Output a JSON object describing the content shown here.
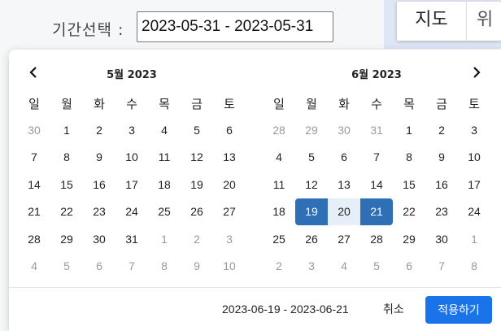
{
  "header": {
    "period_label": "기간선택 :",
    "date_input_value": "2023-05-31 - 2023-05-31",
    "tabs": [
      {
        "label": "지도"
      },
      {
        "label": "위"
      }
    ]
  },
  "calendar": {
    "weekdays": [
      "일",
      "월",
      "화",
      "수",
      "목",
      "금",
      "토"
    ],
    "months": [
      {
        "title": "5월 2023",
        "weeks": [
          [
            {
              "d": "30",
              "out": true
            },
            {
              "d": "1"
            },
            {
              "d": "2"
            },
            {
              "d": "3"
            },
            {
              "d": "4"
            },
            {
              "d": "5"
            },
            {
              "d": "6"
            }
          ],
          [
            {
              "d": "7"
            },
            {
              "d": "8"
            },
            {
              "d": "9"
            },
            {
              "d": "10"
            },
            {
              "d": "11"
            },
            {
              "d": "12"
            },
            {
              "d": "13"
            }
          ],
          [
            {
              "d": "14"
            },
            {
              "d": "15"
            },
            {
              "d": "16"
            },
            {
              "d": "17"
            },
            {
              "d": "18"
            },
            {
              "d": "19"
            },
            {
              "d": "20"
            }
          ],
          [
            {
              "d": "21"
            },
            {
              "d": "22"
            },
            {
              "d": "23"
            },
            {
              "d": "24"
            },
            {
              "d": "25"
            },
            {
              "d": "26"
            },
            {
              "d": "27"
            }
          ],
          [
            {
              "d": "28"
            },
            {
              "d": "29"
            },
            {
              "d": "30"
            },
            {
              "d": "31"
            },
            {
              "d": "1",
              "out": true
            },
            {
              "d": "2",
              "out": true
            },
            {
              "d": "3",
              "out": true
            }
          ],
          [
            {
              "d": "4",
              "out": true
            },
            {
              "d": "5",
              "out": true
            },
            {
              "d": "6",
              "out": true
            },
            {
              "d": "7",
              "out": true
            },
            {
              "d": "8",
              "out": true
            },
            {
              "d": "9",
              "out": true
            },
            {
              "d": "10",
              "out": true
            }
          ]
        ]
      },
      {
        "title": "6월 2023",
        "weeks": [
          [
            {
              "d": "28",
              "out": true
            },
            {
              "d": "29",
              "out": true
            },
            {
              "d": "30",
              "out": true
            },
            {
              "d": "31",
              "out": true
            },
            {
              "d": "1"
            },
            {
              "d": "2"
            },
            {
              "d": "3"
            }
          ],
          [
            {
              "d": "4"
            },
            {
              "d": "5"
            },
            {
              "d": "6"
            },
            {
              "d": "7"
            },
            {
              "d": "8"
            },
            {
              "d": "9"
            },
            {
              "d": "10"
            }
          ],
          [
            {
              "d": "11"
            },
            {
              "d": "12"
            },
            {
              "d": "13"
            },
            {
              "d": "14"
            },
            {
              "d": "15"
            },
            {
              "d": "16"
            },
            {
              "d": "17"
            }
          ],
          [
            {
              "d": "18"
            },
            {
              "d": "19",
              "sel": "start"
            },
            {
              "d": "20",
              "range": true
            },
            {
              "d": "21",
              "sel": "end"
            },
            {
              "d": "22"
            },
            {
              "d": "23"
            },
            {
              "d": "24"
            }
          ],
          [
            {
              "d": "25"
            },
            {
              "d": "26"
            },
            {
              "d": "27"
            },
            {
              "d": "28"
            },
            {
              "d": "29"
            },
            {
              "d": "30"
            },
            {
              "d": "1",
              "out": true
            }
          ],
          [
            {
              "d": "2",
              "out": true
            },
            {
              "d": "3",
              "out": true
            },
            {
              "d": "4",
              "out": true
            },
            {
              "d": "5",
              "out": true
            },
            {
              "d": "6",
              "out": true
            },
            {
              "d": "7",
              "out": true
            },
            {
              "d": "8",
              "out": true
            }
          ]
        ]
      }
    ]
  },
  "footer": {
    "selected_range": "2023-06-19 - 2023-06-21",
    "cancel_label": "취소",
    "apply_label": "적용하기"
  },
  "icons": {
    "prev": "chevron-left-icon",
    "next": "chevron-right-icon"
  },
  "colors": {
    "selected": "#2f6fb6",
    "in_range": "#e6eff8",
    "apply_button": "#1a73e8",
    "header_strip": "#dfe6f5"
  }
}
